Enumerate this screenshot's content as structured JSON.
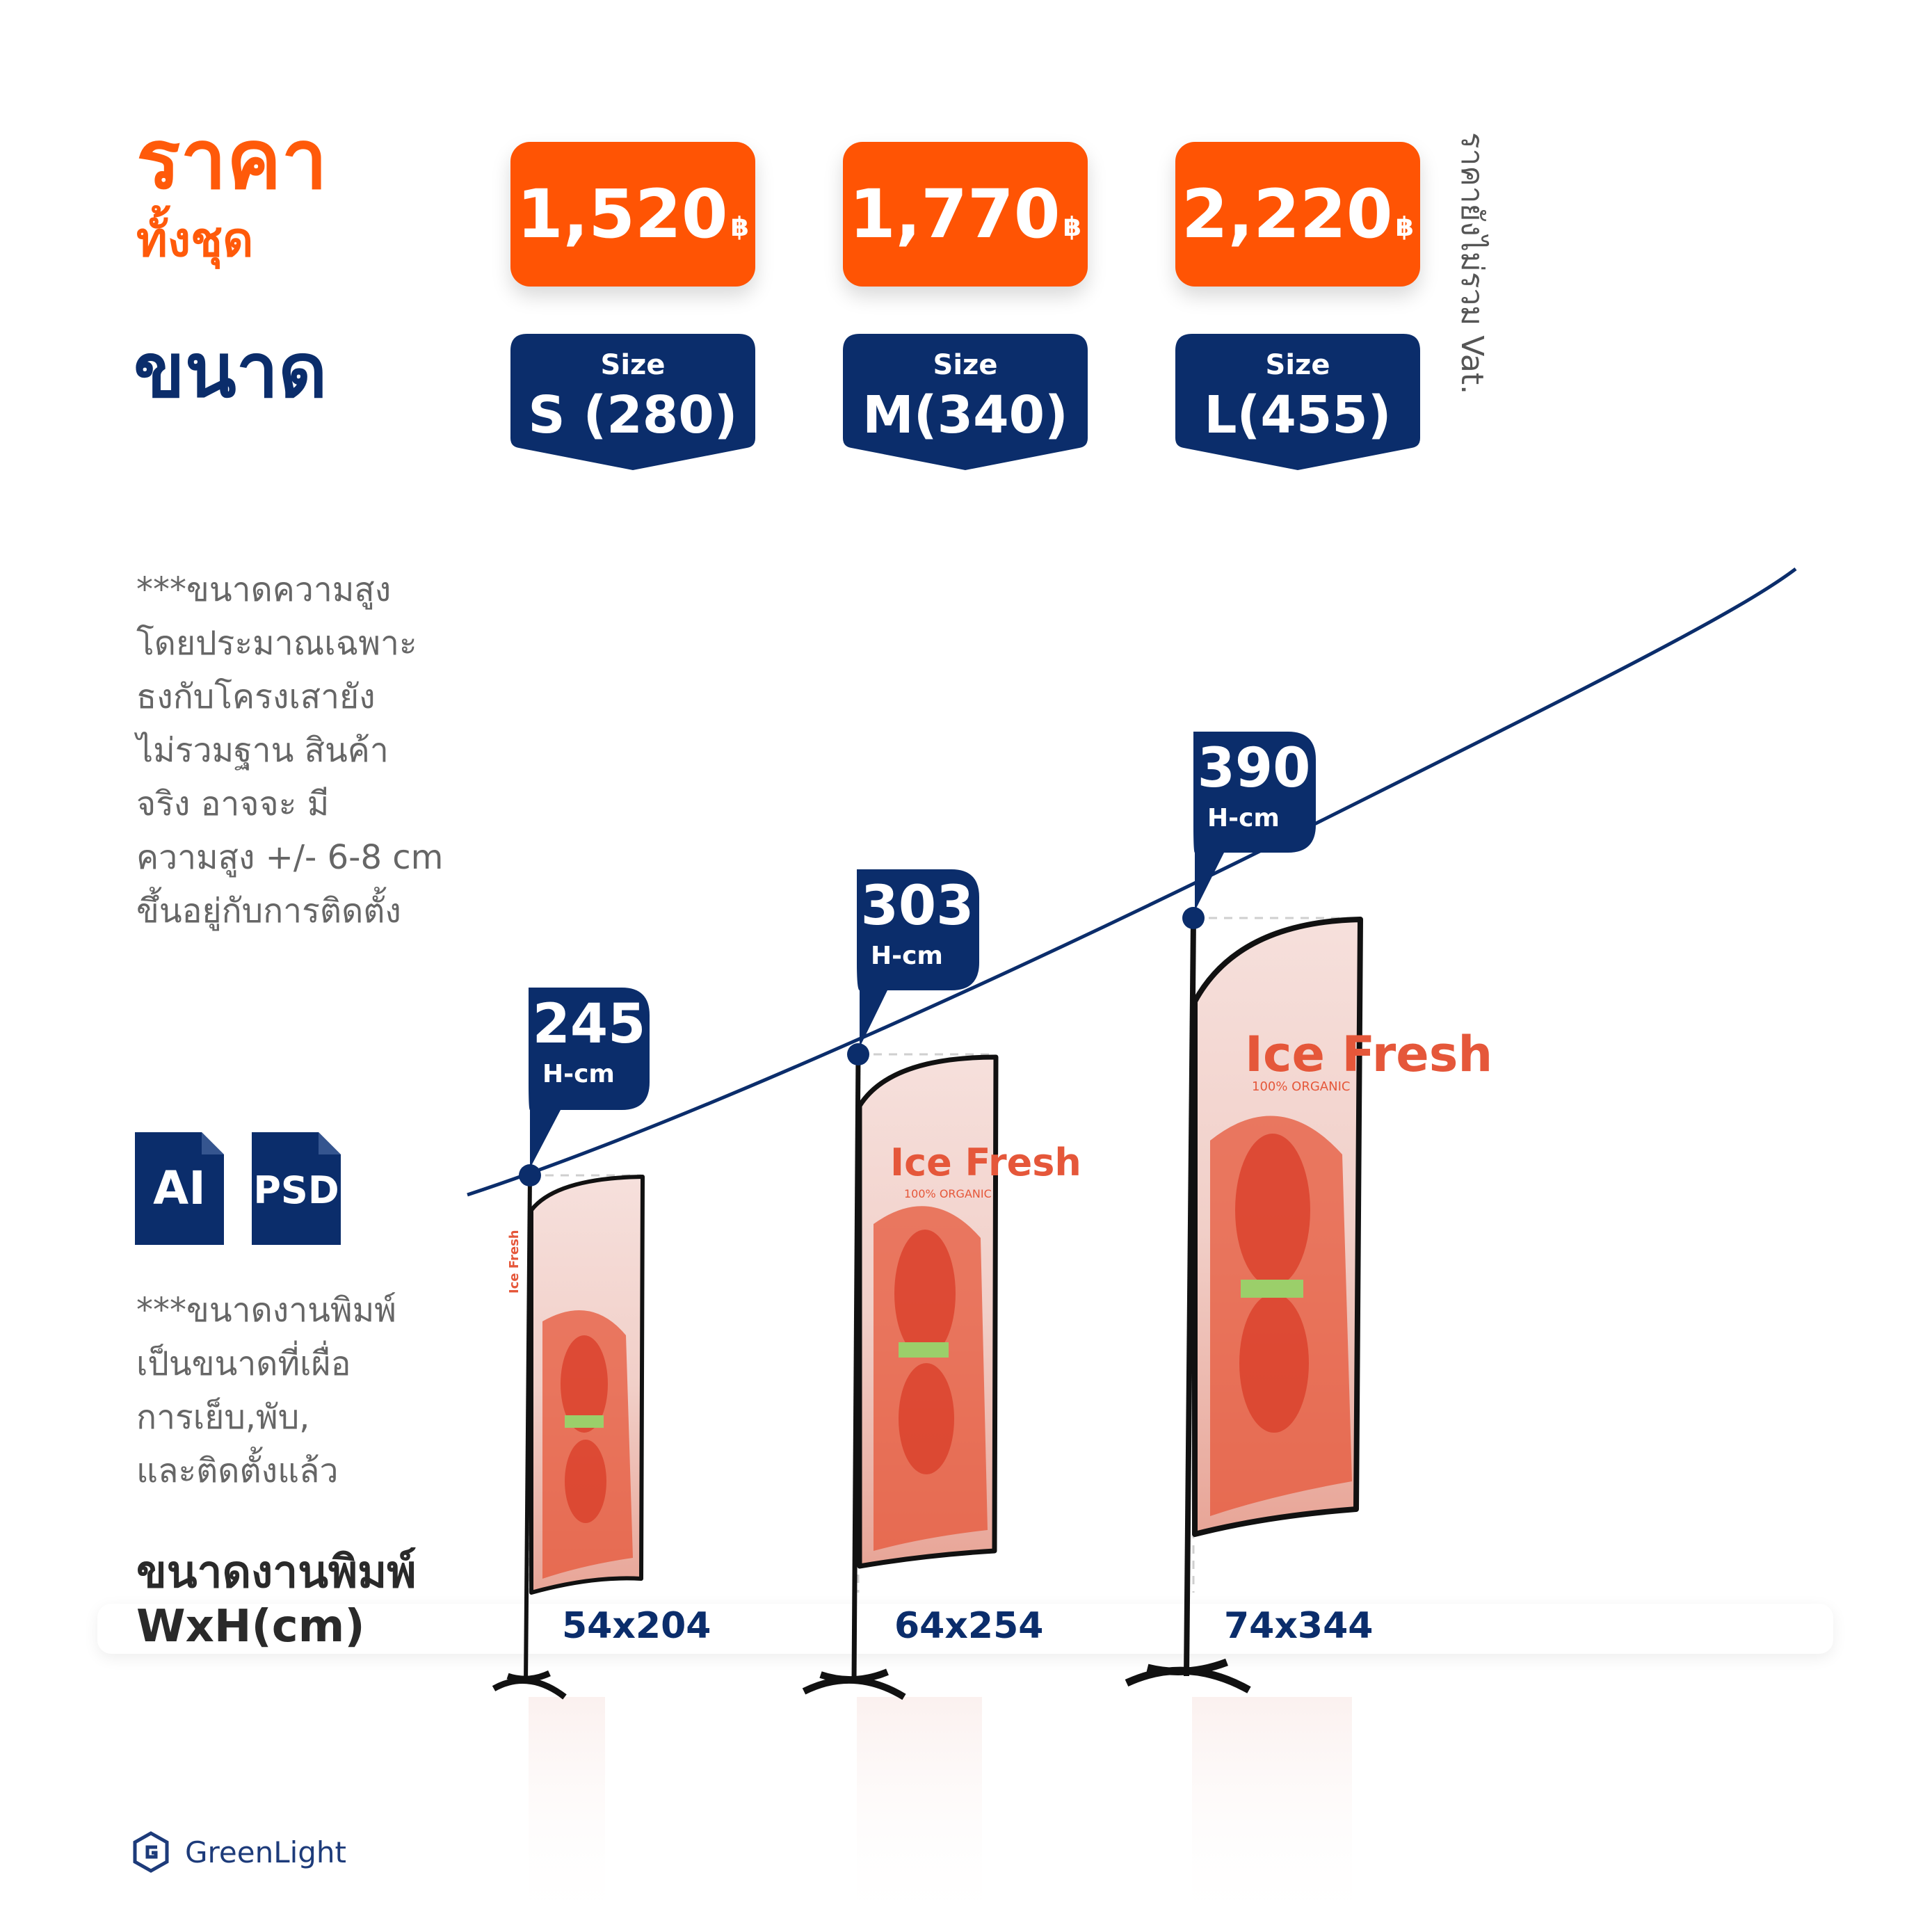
{
  "header": {
    "price_title": "ราคา",
    "price_subtitle": "ทั้งชุด",
    "size_title": "ขนาด",
    "vat_note": "ราคายังไม่รวม Vat."
  },
  "options": [
    {
      "price": "1,520",
      "currency": "฿",
      "size_label": "Size",
      "size_value": "S (280)",
      "height": "245",
      "height_unit": "H-cm",
      "print_size": "54x204"
    },
    {
      "price": "1,770",
      "currency": "฿",
      "size_label": "Size",
      "size_value": "M(340)",
      "height": "303",
      "height_unit": "H-cm",
      "print_size": "64x254"
    },
    {
      "price": "2,220",
      "currency": "฿",
      "size_label": "Size",
      "size_value": "L(455)",
      "height": "390",
      "height_unit": "H-cm",
      "print_size": "74x344"
    }
  ],
  "notes": {
    "height_note": "***ขนาดความสูง\nโดยประมาณเฉพาะ\nธงกับโครงเสายัง\nไม่รวมฐาน สินค้า\nจริง อาจจะ มี\nความสูง +/- 6-8 cm\nขึ้นอยู่กับการติดตั้ง",
    "print_note": "***ขนาดงานพิมพ์\nเป็นขนาดที่เผื่อ\nการเย็บ,พับ,\nและติดตั้งแล้ว"
  },
  "file_formats": [
    "AI",
    "PSD"
  ],
  "print_size_label": {
    "line1": "ขนาดงานพิมพ์",
    "line2": "WxH(cm)"
  },
  "flag_artwork": {
    "title": "Ice Fresh",
    "tagline": "100% ORGANIC"
  },
  "brand": {
    "name": "GreenLight"
  },
  "colors": {
    "orange": "#ff5404",
    "navy": "#0b2d6b",
    "flag_red": "#e5573a",
    "flag_bg": "#f3d6d1"
  }
}
